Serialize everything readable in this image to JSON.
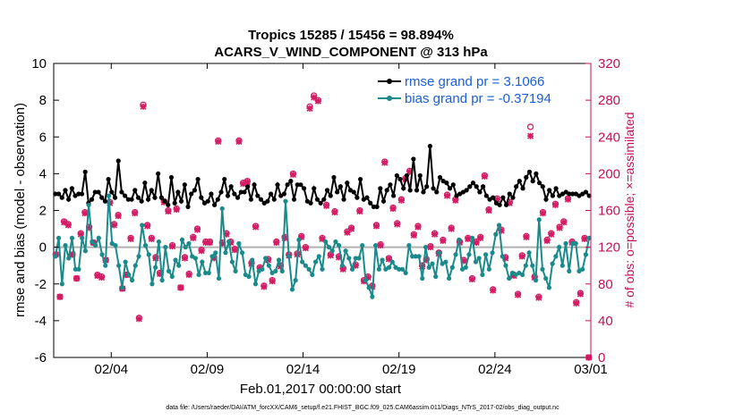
{
  "chart_data": {
    "type": "line",
    "title": "Tropics 15285 / 15456 = 98.894%",
    "subtitle": "ACARS_V_WIND_COMPONENT @ 313 hPa",
    "xlabel": "Feb.01,2017 00:00:00 start",
    "ylabel": "rmse and bias (model - observation)",
    "y2label": "# of obs: o=possible; ×=assimilated",
    "footnote": "data file: /Users/raeder/DAI/ATM_forcXX/CAM6_setup/f.e21.FHIST_BGC.f09_025.CAM6assim.011/Diags_NTrS_2017-02/obs_diag_output.nc",
    "xlim": [
      0,
      28
    ],
    "ylim": [
      -6,
      10
    ],
    "y2lim": [
      0,
      320
    ],
    "grid": false,
    "legend_position": "top-right",
    "colors": {
      "rmse": "#000000",
      "bias": "#1a8a8a",
      "obs": "#d41c64",
      "zero": "#b0b0b0"
    },
    "x_ticks": [
      {
        "value": 3,
        "label": "02/04"
      },
      {
        "value": 8,
        "label": "02/09"
      },
      {
        "value": 13,
        "label": "02/14"
      },
      {
        "value": 18,
        "label": "02/19"
      },
      {
        "value": 23,
        "label": "02/24"
      },
      {
        "value": 28,
        "label": "03/01"
      }
    ],
    "y_ticks": [
      {
        "value": -6,
        "label": "-6"
      },
      {
        "value": -4,
        "label": "-4"
      },
      {
        "value": -2,
        "label": "-2"
      },
      {
        "value": 0,
        "label": "0"
      },
      {
        "value": 2,
        "label": "2"
      },
      {
        "value": 4,
        "label": "4"
      },
      {
        "value": 6,
        "label": "6"
      },
      {
        "value": 8,
        "label": "8"
      },
      {
        "value": 10,
        "label": "10"
      }
    ],
    "y2_ticks": [
      {
        "value": 0,
        "label": "0"
      },
      {
        "value": 40,
        "label": "40"
      },
      {
        "value": 80,
        "label": "80"
      },
      {
        "value": 120,
        "label": "120"
      },
      {
        "value": 160,
        "label": "160"
      },
      {
        "value": 200,
        "label": "200"
      },
      {
        "value": 240,
        "label": "240"
      },
      {
        "value": 280,
        "label": "280"
      },
      {
        "value": 320,
        "label": "320"
      }
    ],
    "series": [
      {
        "name": "rmse grand pr = 3.1066",
        "values": [
          2.9,
          2.9,
          2.7,
          3.1,
          2.6,
          3.2,
          2.8,
          2.9,
          2.9,
          4.1,
          2.4,
          2.6,
          3.0,
          3.0,
          2.7,
          2.5,
          3.7,
          3.0,
          2.7,
          4.7,
          3.0,
          2.8,
          2.6,
          2.6,
          3.1,
          2.7,
          2.5,
          3.5,
          2.6,
          3.1,
          2.7,
          4.0,
          2.7,
          2.5,
          2.3,
          3.8,
          2.4,
          3.0,
          2.5,
          3.4,
          2.2,
          2.9,
          3.1,
          3.7,
          2.7,
          2.4,
          2.5,
          2.9,
          2.3,
          2.6,
          3.0,
          3.7,
          2.8,
          3.3,
          2.9,
          2.7,
          3.0,
          3.0,
          3.3,
          2.6,
          3.4,
          2.8,
          2.6,
          2.4,
          2.5,
          2.9,
          2.6,
          3.4,
          2.8,
          2.9,
          3.4,
          3.6,
          2.6,
          3.4,
          3.4,
          3.2,
          2.5,
          2.4,
          3.2,
          2.6,
          2.4,
          2.6,
          3.1,
          2.8,
          3.8,
          3.0,
          3.3,
          2.6,
          3.5,
          3.1,
          3.0,
          2.7,
          3.7,
          2.6,
          2.7,
          2.4,
          2.2,
          2.2,
          3.2,
          2.5,
          3.1,
          3.4,
          2.8,
          3.9,
          3.7,
          3.2,
          3.9,
          3.1,
          4.8,
          3.1,
          3.9,
          3.0,
          3.3,
          5.5,
          3.2,
          3.0,
          3.8,
          3.6,
          3.5,
          3.2,
          3.4,
          2.8,
          2.9,
          3.0,
          3.1,
          3.3,
          3.5,
          3.3,
          3.0,
          3.3,
          2.8,
          2.6,
          2.7,
          2.4,
          2.3,
          2.7,
          2.3,
          2.9,
          2.7,
          3.3,
          3.6,
          3.2,
          3.8,
          4.1,
          3.6,
          4.0,
          3.5,
          3.3,
          2.6,
          3.1,
          2.8,
          3.2,
          2.8,
          2.9,
          3.0,
          2.9,
          2.9,
          2.9,
          2.8,
          2.9,
          3.0,
          2.8
        ]
      },
      {
        "name": "bias grand pr = -0.37194",
        "values": [
          -0.5,
          0.5,
          -2.0,
          0.1,
          -0.6,
          0.5,
          -1.2,
          -1.2,
          0.5,
          -0.2,
          2.3,
          0.3,
          0.1,
          0.5,
          -0.4,
          -1.0,
          2.8,
          0.2,
          0.1,
          -1.0,
          -2.2,
          -0.8,
          -1.5,
          -1.8,
          -1.0,
          -0.5,
          1.2,
          0.1,
          -0.4,
          -2.0,
          -1.1,
          0.3,
          -1.8,
          0.0,
          -1.3,
          -1.6,
          -0.7,
          -1.0,
          0.4,
          0.0,
          0.2,
          -0.5,
          -0.6,
          -1.5,
          -0.8,
          -1.4,
          -1.4,
          -0.5,
          -0.3,
          -1.7,
          2.1,
          -0.3,
          0.3,
          -0.8,
          -1.3,
          0.2,
          -0.3,
          -1.5,
          -1.6,
          -0.7,
          -2.0,
          -1.3,
          -1.2,
          -0.6,
          -1.0,
          -1.4,
          -1.3,
          -0.7,
          -1.3,
          2.5,
          -0.5,
          -2.3,
          -1.8,
          0.4,
          -0.8,
          -1.0,
          -1.2,
          -1.5,
          -0.8,
          -0.5,
          -1.2,
          0.3,
          0.0,
          -0.2,
          0.3,
          0.1,
          -1.0,
          -0.2,
          -0.6,
          -1.2,
          -0.6,
          -0.6,
          0.1,
          -1.8,
          -2.2,
          -2.7,
          0.1,
          -1.2,
          -0.7,
          -1.2,
          -1.1,
          -0.8,
          -1.1,
          -1.2,
          -1.2,
          -1.4,
          0.1,
          -0.5,
          -0.5,
          -0.5,
          -1.7,
          0.0,
          -1.1,
          -0.9,
          -1.6,
          -0.3,
          -0.9,
          -0.8,
          -1.7,
          -1.1,
          -0.4,
          0.4,
          -1.2,
          -1.1,
          -0.4,
          0.5,
          -0.8,
          -0.6,
          -1.5,
          -0.4,
          -1.2,
          -0.3,
          0.7,
          1.2,
          -0.5,
          -1.0,
          -1.7,
          -1.4,
          -1.5,
          -1.4,
          -1.5,
          -1.0,
          -0.3,
          -1.0,
          -1.8,
          1.5,
          -1.2,
          -1.7,
          -2.2,
          -0.9,
          -0.5,
          0.0,
          -1.0,
          0.2,
          -1.3,
          0.2,
          0.2,
          -1.3,
          -1.2,
          -0.4,
          0.5
        ]
      }
    ],
    "obs_possible": [
      112,
      66,
      148,
      145,
      112,
      86,
      135,
      158,
      142,
      125,
      90,
      88,
      106,
      169,
      145,
      155,
      75,
      90,
      130,
      158,
      43,
      275,
      144,
      130,
      109,
      92,
      170,
      160,
      122,
      162,
      76,
      109,
      91,
      131,
      140,
      117,
      126,
      126,
      109,
      236,
      125,
      135,
      126,
      118,
      236,
      190,
      192,
      103,
      143,
      98,
      78,
      107,
      84,
      126,
      100,
      131,
      112,
      200,
      113,
      132,
      120,
      273,
      285,
      280,
      130,
      166,
      112,
      159,
      110,
      97,
      137,
      141,
      101,
      160,
      84,
      88,
      78,
      144,
      123,
      213,
      108,
      163,
      146,
      172,
      195,
      203,
      134,
      143,
      100,
      107,
      121,
      135,
      114,
      128,
      177,
      141,
      172,
      126,
      106,
      130,
      86,
      126,
      131,
      198,
      161,
      74,
      173,
      139,
      109,
      169,
      90,
      69,
      111,
      132,
      251,
      88,
      66,
      158,
      128,
      135,
      167,
      142,
      148,
      173,
      126,
      60,
      70,
      130,
      0
    ],
    "obs_assimilated": [
      112,
      66,
      147,
      144,
      112,
      86,
      134,
      157,
      141,
      125,
      89,
      87,
      106,
      168,
      144,
      154,
      75,
      90,
      129,
      157,
      42,
      273,
      143,
      129,
      108,
      91,
      169,
      159,
      121,
      161,
      76,
      108,
      90,
      130,
      139,
      116,
      125,
      125,
      108,
      235,
      124,
      134,
      125,
      117,
      235,
      189,
      191,
      102,
      142,
      97,
      77,
      106,
      83,
      125,
      99,
      130,
      111,
      199,
      112,
      131,
      119,
      271,
      283,
      279,
      129,
      165,
      111,
      158,
      109,
      96,
      136,
      140,
      100,
      159,
      83,
      87,
      77,
      143,
      122,
      212,
      107,
      162,
      145,
      171,
      194,
      202,
      133,
      142,
      99,
      106,
      120,
      134,
      113,
      127,
      176,
      140,
      171,
      125,
      105,
      129,
      85,
      125,
      130,
      197,
      160,
      73,
      172,
      138,
      108,
      168,
      89,
      68,
      110,
      131,
      241,
      87,
      65,
      157,
      127,
      134,
      166,
      141,
      147,
      172,
      125,
      59,
      69,
      129,
      0
    ]
  }
}
